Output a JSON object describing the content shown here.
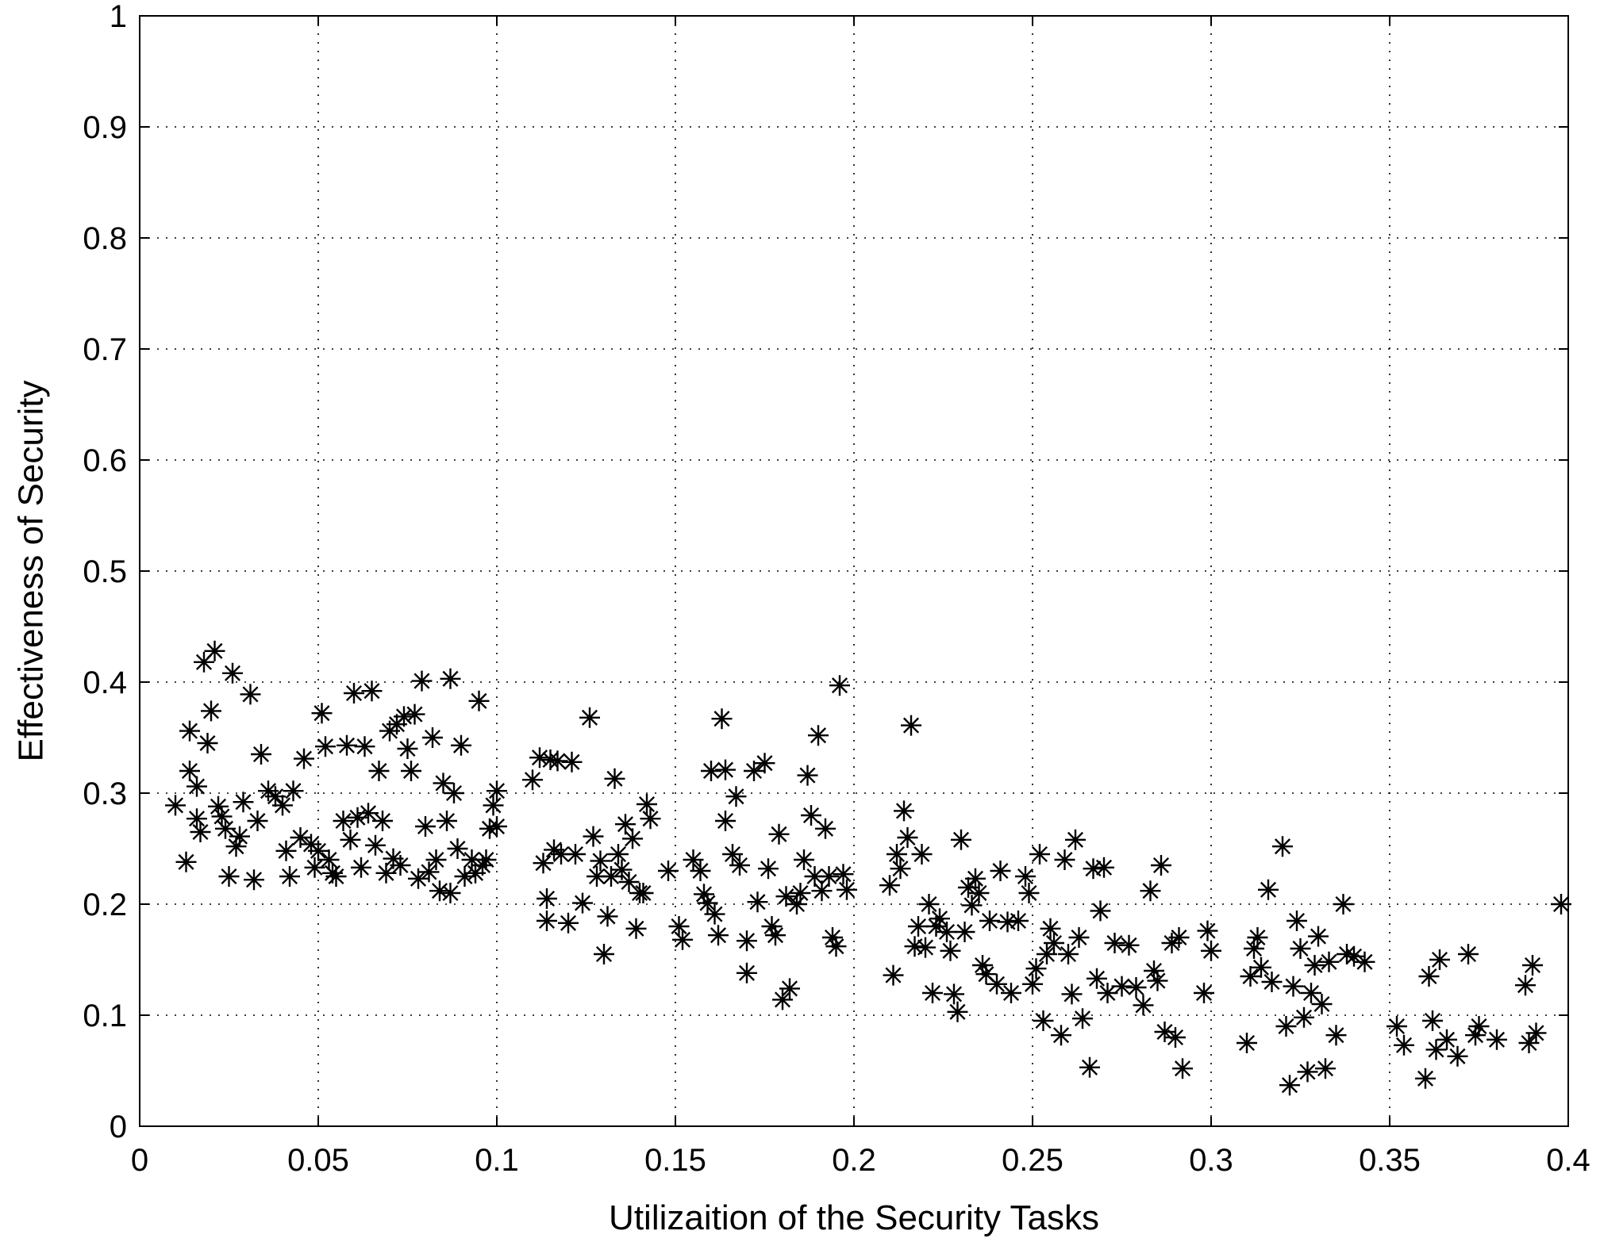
{
  "chart_data": {
    "type": "scatter",
    "title": "",
    "xlabel": "Utilizaition of the Security Tasks",
    "ylabel": "Effectiveness of Security",
    "xlim": [
      0,
      0.4
    ],
    "ylim": [
      0,
      1
    ],
    "xticks": [
      0,
      0.05,
      0.1,
      0.15,
      0.2,
      0.25,
      0.3,
      0.35,
      0.4
    ],
    "xtick_labels": [
      "0",
      "0.05",
      "0.1",
      "0.15",
      "0.2",
      "0.25",
      "0.3",
      "0.35",
      "0.4"
    ],
    "yticks": [
      0,
      0.1,
      0.2,
      0.3,
      0.4,
      0.5,
      0.6,
      0.7,
      0.8,
      0.9,
      1
    ],
    "ytick_labels": [
      "0",
      "0.1",
      "0.2",
      "0.3",
      "0.4",
      "0.5",
      "0.6",
      "0.7",
      "0.8",
      "0.9",
      "1"
    ],
    "grid": true,
    "marker": "asterisk",
    "marker_color": "#000000",
    "series": [
      {
        "points": [
          [
            0.01,
            0.289
          ],
          [
            0.013,
            0.238
          ],
          [
            0.014,
            0.356
          ],
          [
            0.014,
            0.32
          ],
          [
            0.016,
            0.306
          ],
          [
            0.016,
            0.277
          ],
          [
            0.017,
            0.265
          ],
          [
            0.018,
            0.418
          ],
          [
            0.019,
            0.345
          ],
          [
            0.02,
            0.374
          ],
          [
            0.021,
            0.428
          ],
          [
            0.022,
            0.288
          ],
          [
            0.023,
            0.279
          ],
          [
            0.024,
            0.268
          ],
          [
            0.025,
            0.225
          ],
          [
            0.026,
            0.408
          ],
          [
            0.027,
            0.252
          ],
          [
            0.028,
            0.261
          ],
          [
            0.029,
            0.292
          ],
          [
            0.031,
            0.389
          ],
          [
            0.032,
            0.222
          ],
          [
            0.033,
            0.275
          ],
          [
            0.034,
            0.335
          ],
          [
            0.036,
            0.302
          ],
          [
            0.038,
            0.297
          ],
          [
            0.04,
            0.289
          ],
          [
            0.041,
            0.248
          ],
          [
            0.042,
            0.225
          ],
          [
            0.043,
            0.302
          ],
          [
            0.045,
            0.26
          ],
          [
            0.046,
            0.331
          ],
          [
            0.048,
            0.254
          ],
          [
            0.049,
            0.233
          ],
          [
            0.05,
            0.248
          ],
          [
            0.051,
            0.372
          ],
          [
            0.052,
            0.342
          ],
          [
            0.053,
            0.24
          ],
          [
            0.054,
            0.228
          ],
          [
            0.055,
            0.225
          ],
          [
            0.057,
            0.275
          ],
          [
            0.058,
            0.343
          ],
          [
            0.059,
            0.258
          ],
          [
            0.06,
            0.39
          ],
          [
            0.061,
            0.278
          ],
          [
            0.062,
            0.233
          ],
          [
            0.063,
            0.342
          ],
          [
            0.064,
            0.282
          ],
          [
            0.065,
            0.392
          ],
          [
            0.066,
            0.253
          ],
          [
            0.067,
            0.32
          ],
          [
            0.068,
            0.275
          ],
          [
            0.069,
            0.228
          ],
          [
            0.07,
            0.356
          ],
          [
            0.071,
            0.241
          ],
          [
            0.072,
            0.362
          ],
          [
            0.073,
            0.235
          ],
          [
            0.074,
            0.369
          ],
          [
            0.075,
            0.34
          ],
          [
            0.076,
            0.32
          ],
          [
            0.077,
            0.371
          ],
          [
            0.078,
            0.223
          ],
          [
            0.079,
            0.401
          ],
          [
            0.08,
            0.27
          ],
          [
            0.081,
            0.229
          ],
          [
            0.082,
            0.35
          ],
          [
            0.083,
            0.24
          ],
          [
            0.084,
            0.212
          ],
          [
            0.085,
            0.309
          ],
          [
            0.086,
            0.275
          ],
          [
            0.087,
            0.21
          ],
          [
            0.087,
            0.403
          ],
          [
            0.088,
            0.3
          ],
          [
            0.089,
            0.25
          ],
          [
            0.09,
            0.343
          ],
          [
            0.091,
            0.225
          ],
          [
            0.093,
            0.24
          ],
          [
            0.094,
            0.228
          ],
          [
            0.095,
            0.383
          ],
          [
            0.096,
            0.235
          ],
          [
            0.097,
            0.24
          ],
          [
            0.098,
            0.268
          ],
          [
            0.099,
            0.289
          ],
          [
            0.1,
            0.302
          ],
          [
            0.1,
            0.27
          ],
          [
            0.11,
            0.312
          ],
          [
            0.112,
            0.332
          ],
          [
            0.113,
            0.237
          ],
          [
            0.114,
            0.205
          ],
          [
            0.114,
            0.185
          ],
          [
            0.115,
            0.33
          ],
          [
            0.116,
            0.249
          ],
          [
            0.117,
            0.329
          ],
          [
            0.118,
            0.245
          ],
          [
            0.12,
            0.183
          ],
          [
            0.121,
            0.328
          ],
          [
            0.122,
            0.245
          ],
          [
            0.124,
            0.201
          ],
          [
            0.126,
            0.368
          ],
          [
            0.127,
            0.261
          ],
          [
            0.128,
            0.225
          ],
          [
            0.129,
            0.239
          ],
          [
            0.13,
            0.155
          ],
          [
            0.131,
            0.189
          ],
          [
            0.132,
            0.225
          ],
          [
            0.133,
            0.313
          ],
          [
            0.134,
            0.245
          ],
          [
            0.135,
            0.231
          ],
          [
            0.136,
            0.272
          ],
          [
            0.137,
            0.22
          ],
          [
            0.138,
            0.259
          ],
          [
            0.139,
            0.178
          ],
          [
            0.14,
            0.21
          ],
          [
            0.141,
            0.21
          ],
          [
            0.142,
            0.29
          ],
          [
            0.143,
            0.277
          ],
          [
            0.148,
            0.23
          ],
          [
            0.151,
            0.18
          ],
          [
            0.152,
            0.168
          ],
          [
            0.155,
            0.24
          ],
          [
            0.157,
            0.23
          ],
          [
            0.158,
            0.209
          ],
          [
            0.159,
            0.201
          ],
          [
            0.16,
            0.32
          ],
          [
            0.161,
            0.191
          ],
          [
            0.162,
            0.172
          ],
          [
            0.163,
            0.367
          ],
          [
            0.164,
            0.321
          ],
          [
            0.164,
            0.275
          ],
          [
            0.166,
            0.245
          ],
          [
            0.167,
            0.297
          ],
          [
            0.168,
            0.235
          ],
          [
            0.17,
            0.167
          ],
          [
            0.17,
            0.138
          ],
          [
            0.172,
            0.32
          ],
          [
            0.173,
            0.202
          ],
          [
            0.175,
            0.327
          ],
          [
            0.176,
            0.232
          ],
          [
            0.177,
            0.18
          ],
          [
            0.178,
            0.172
          ],
          [
            0.179,
            0.263
          ],
          [
            0.18,
            0.114
          ],
          [
            0.181,
            0.207
          ],
          [
            0.182,
            0.124
          ],
          [
            0.184,
            0.2
          ],
          [
            0.185,
            0.21
          ],
          [
            0.186,
            0.24
          ],
          [
            0.187,
            0.316
          ],
          [
            0.188,
            0.28
          ],
          [
            0.189,
            0.225
          ],
          [
            0.19,
            0.352
          ],
          [
            0.191,
            0.212
          ],
          [
            0.192,
            0.268
          ],
          [
            0.193,
            0.225
          ],
          [
            0.194,
            0.17
          ],
          [
            0.195,
            0.162
          ],
          [
            0.196,
            0.397
          ],
          [
            0.197,
            0.227
          ],
          [
            0.198,
            0.213
          ],
          [
            0.21,
            0.217
          ],
          [
            0.211,
            0.136
          ],
          [
            0.212,
            0.245
          ],
          [
            0.213,
            0.232
          ],
          [
            0.214,
            0.284
          ],
          [
            0.215,
            0.26
          ],
          [
            0.216,
            0.361
          ],
          [
            0.217,
            0.162
          ],
          [
            0.218,
            0.18
          ],
          [
            0.219,
            0.245
          ],
          [
            0.22,
            0.161
          ],
          [
            0.221,
            0.2
          ],
          [
            0.222,
            0.12
          ],
          [
            0.223,
            0.18
          ],
          [
            0.224,
            0.187
          ],
          [
            0.226,
            0.175
          ],
          [
            0.227,
            0.158
          ],
          [
            0.228,
            0.119
          ],
          [
            0.229,
            0.103
          ],
          [
            0.23,
            0.258
          ],
          [
            0.231,
            0.175
          ],
          [
            0.232,
            0.215
          ],
          [
            0.233,
            0.199
          ],
          [
            0.234,
            0.223
          ],
          [
            0.235,
            0.21
          ],
          [
            0.236,
            0.145
          ],
          [
            0.237,
            0.137
          ],
          [
            0.238,
            0.185
          ],
          [
            0.24,
            0.128
          ],
          [
            0.241,
            0.23
          ],
          [
            0.243,
            0.184
          ],
          [
            0.244,
            0.12
          ],
          [
            0.246,
            0.185
          ],
          [
            0.248,
            0.225
          ],
          [
            0.249,
            0.21
          ],
          [
            0.25,
            0.128
          ],
          [
            0.251,
            0.142
          ],
          [
            0.252,
            0.245
          ],
          [
            0.253,
            0.095
          ],
          [
            0.254,
            0.155
          ],
          [
            0.255,
            0.178
          ],
          [
            0.256,
            0.165
          ],
          [
            0.258,
            0.082
          ],
          [
            0.259,
            0.24
          ],
          [
            0.26,
            0.155
          ],
          [
            0.261,
            0.119
          ],
          [
            0.262,
            0.258
          ],
          [
            0.263,
            0.17
          ],
          [
            0.264,
            0.097
          ],
          [
            0.266,
            0.053
          ],
          [
            0.267,
            0.232
          ],
          [
            0.268,
            0.133
          ],
          [
            0.269,
            0.194
          ],
          [
            0.27,
            0.233
          ],
          [
            0.271,
            0.12
          ],
          [
            0.273,
            0.165
          ],
          [
            0.275,
            0.126
          ],
          [
            0.277,
            0.163
          ],
          [
            0.279,
            0.125
          ],
          [
            0.281,
            0.109
          ],
          [
            0.283,
            0.212
          ],
          [
            0.284,
            0.14
          ],
          [
            0.285,
            0.131
          ],
          [
            0.286,
            0.235
          ],
          [
            0.287,
            0.085
          ],
          [
            0.289,
            0.165
          ],
          [
            0.29,
            0.08
          ],
          [
            0.291,
            0.17
          ],
          [
            0.292,
            0.052
          ],
          [
            0.298,
            0.12
          ],
          [
            0.299,
            0.176
          ],
          [
            0.3,
            0.158
          ],
          [
            0.31,
            0.075
          ],
          [
            0.311,
            0.135
          ],
          [
            0.312,
            0.16
          ],
          [
            0.313,
            0.17
          ],
          [
            0.314,
            0.143
          ],
          [
            0.316,
            0.213
          ],
          [
            0.317,
            0.13
          ],
          [
            0.32,
            0.252
          ],
          [
            0.321,
            0.09
          ],
          [
            0.322,
            0.037
          ],
          [
            0.323,
            0.126
          ],
          [
            0.324,
            0.185
          ],
          [
            0.325,
            0.16
          ],
          [
            0.326,
            0.098
          ],
          [
            0.327,
            0.049
          ],
          [
            0.328,
            0.12
          ],
          [
            0.329,
            0.145
          ],
          [
            0.33,
            0.171
          ],
          [
            0.331,
            0.11
          ],
          [
            0.332,
            0.052
          ],
          [
            0.333,
            0.148
          ],
          [
            0.335,
            0.082
          ],
          [
            0.337,
            0.2
          ],
          [
            0.338,
            0.155
          ],
          [
            0.34,
            0.153
          ],
          [
            0.343,
            0.148
          ],
          [
            0.352,
            0.09
          ],
          [
            0.354,
            0.073
          ],
          [
            0.36,
            0.043
          ],
          [
            0.361,
            0.135
          ],
          [
            0.362,
            0.095
          ],
          [
            0.363,
            0.069
          ],
          [
            0.364,
            0.15
          ],
          [
            0.366,
            0.078
          ],
          [
            0.369,
            0.063
          ],
          [
            0.372,
            0.155
          ],
          [
            0.374,
            0.082
          ],
          [
            0.375,
            0.09
          ],
          [
            0.38,
            0.078
          ],
          [
            0.388,
            0.127
          ],
          [
            0.389,
            0.075
          ],
          [
            0.39,
            0.145
          ],
          [
            0.391,
            0.084
          ],
          [
            0.398,
            0.2
          ]
        ]
      }
    ]
  }
}
